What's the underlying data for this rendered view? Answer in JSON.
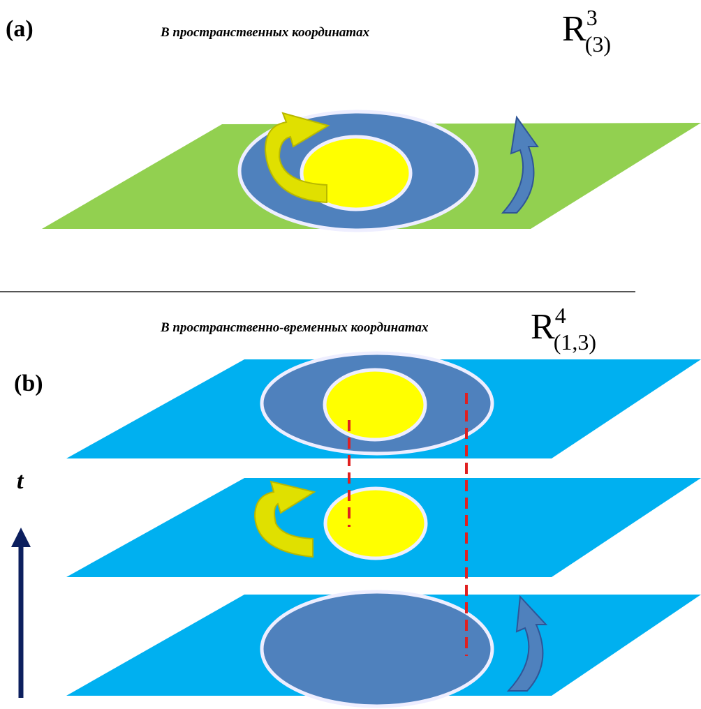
{
  "panels": [
    {
      "label": "(a)",
      "caption": "В пространственных координатах",
      "space": {
        "base": "R",
        "sup": "3",
        "sub": "(3)"
      }
    },
    {
      "label": "(b)",
      "caption": "В пространственно-временных координатах",
      "space": {
        "base": "R",
        "sup": "4",
        "sub": "(1,3)"
      }
    }
  ],
  "time_axis": {
    "label": "t"
  }
}
